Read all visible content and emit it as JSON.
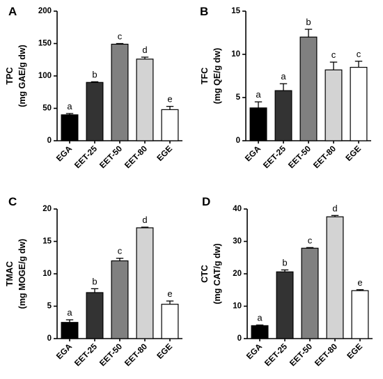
{
  "chart_data": [
    {
      "panel": "A",
      "type": "bar",
      "categories": [
        "EGA",
        "EET-25",
        "EET-50",
        "EET-80",
        "EGE"
      ],
      "values": [
        40,
        90,
        149,
        126,
        48
      ],
      "errors": [
        2,
        1,
        1,
        3,
        5
      ],
      "letters": [
        "a",
        "b",
        "c",
        "d",
        "e"
      ],
      "ylabel_line1": "TPC",
      "ylabel_line2": "(mg GAE/g dw)",
      "ylim": [
        0,
        200
      ],
      "yticks": [
        0,
        50,
        100,
        150,
        200
      ],
      "colors": [
        "#000000",
        "#333333",
        "#808080",
        "#d3d3d3",
        "#ffffff"
      ]
    },
    {
      "panel": "B",
      "type": "bar",
      "categories": [
        "EGA",
        "EET-25",
        "EET-50",
        "EET-80",
        "EGE"
      ],
      "values": [
        3.8,
        5.8,
        12,
        8.2,
        8.5
      ],
      "errors": [
        0.7,
        0.8,
        0.9,
        0.9,
        0.7
      ],
      "letters": [
        "a",
        "a",
        "b",
        "c",
        "c"
      ],
      "ylabel_line1": "TFC",
      "ylabel_line2": "(mg QE/g dw)",
      "ylim": [
        0,
        15
      ],
      "yticks": [
        0,
        5,
        10,
        15
      ],
      "colors": [
        "#000000",
        "#333333",
        "#808080",
        "#d3d3d3",
        "#ffffff"
      ]
    },
    {
      "panel": "C",
      "type": "bar",
      "categories": [
        "EGA",
        "EET-25",
        "EET-50",
        "EET-80",
        "EGE"
      ],
      "values": [
        2.5,
        7.1,
        12,
        17.1,
        5.3
      ],
      "errors": [
        0.4,
        0.6,
        0.4,
        0.1,
        0.5
      ],
      "letters": [
        "a",
        "b",
        "c",
        "d",
        "e"
      ],
      "ylabel_line1": "TMAC",
      "ylabel_line2": "(mg MOGE/g dw)",
      "ylim": [
        0,
        20
      ],
      "yticks": [
        0,
        5,
        10,
        15,
        20
      ],
      "colors": [
        "#000000",
        "#333333",
        "#808080",
        "#d3d3d3",
        "#ffffff"
      ]
    },
    {
      "panel": "D",
      "type": "bar",
      "categories": [
        "EGA",
        "EET-25",
        "EET-50",
        "EET-80",
        "EGE"
      ],
      "values": [
        4,
        20.6,
        27.9,
        37.6,
        14.8
      ],
      "errors": [
        0.2,
        0.6,
        0.2,
        0.4,
        0.3
      ],
      "letters": [
        "a",
        "b",
        "c",
        "d",
        "e"
      ],
      "ylabel_line1": "CTC",
      "ylabel_line2": "(mg CAT/g dw)",
      "ylim": [
        0,
        40
      ],
      "yticks": [
        0,
        10,
        20,
        30,
        40
      ],
      "colors": [
        "#000000",
        "#333333",
        "#808080",
        "#d3d3d3",
        "#ffffff"
      ]
    }
  ]
}
